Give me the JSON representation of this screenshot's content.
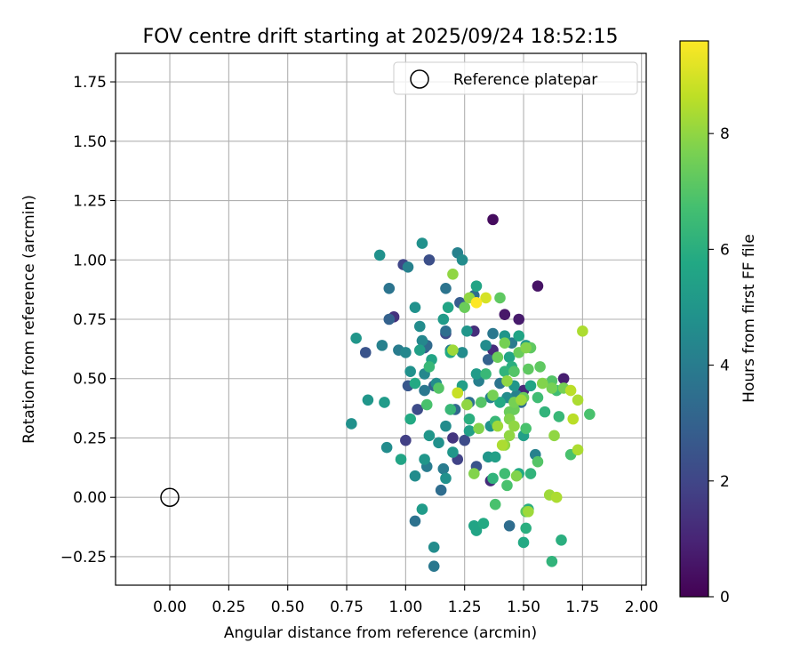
{
  "chart_data": {
    "type": "scatter",
    "title": "FOV centre drift starting at 2025/09/24 18:52:15",
    "xlabel": "Angular distance from reference (arcmin)",
    "ylabel": "Rotation from reference (arcmin)",
    "xlim": [
      -0.23,
      2.02
    ],
    "ylim": [
      -0.37,
      1.87
    ],
    "x_ticks": [
      0.0,
      0.25,
      0.5,
      0.75,
      1.0,
      1.25,
      1.5,
      1.75,
      2.0
    ],
    "x_tick_labels": [
      "0.00",
      "0.25",
      "0.50",
      "0.75",
      "1.00",
      "1.25",
      "1.50",
      "1.75",
      "2.00"
    ],
    "y_ticks": [
      -0.25,
      0.0,
      0.25,
      0.5,
      0.75,
      1.0,
      1.25,
      1.5,
      1.75
    ],
    "y_tick_labels": [
      "−0.25",
      "0.00",
      "0.25",
      "0.50",
      "0.75",
      "1.00",
      "1.25",
      "1.50",
      "1.75"
    ],
    "grid": true,
    "legend": {
      "position": "top-right",
      "label": "Reference platepar"
    },
    "reference_point": {
      "x": 0.0,
      "y": 0.0
    },
    "colorbar": {
      "label": "Hours from first FF file",
      "range": [
        0,
        9.6
      ],
      "ticks": [
        0,
        2,
        4,
        6,
        8
      ],
      "tick_labels": [
        "0",
        "2",
        "4",
        "6",
        "8"
      ],
      "colormap": "viridis"
    },
    "points": [
      [
        1.37,
        1.17,
        0.3
      ],
      [
        1.56,
        0.89,
        0.5
      ],
      [
        1.42,
        0.77,
        0.6
      ],
      [
        1.48,
        0.75,
        0.7
      ],
      [
        1.67,
        0.5,
        0.8
      ],
      [
        0.95,
        0.76,
        1.4
      ],
      [
        0.99,
        0.98,
        2.0
      ],
      [
        1.1,
        1.0,
        2.3
      ],
      [
        1.36,
        0.07,
        1.2
      ],
      [
        1.0,
        0.24,
        1.8
      ],
      [
        1.37,
        0.62,
        1.2
      ],
      [
        1.2,
        0.25,
        1.5
      ],
      [
        1.29,
        0.7,
        1.3
      ],
      [
        1.22,
        0.16,
        1.9
      ],
      [
        0.83,
        0.61,
        2.5
      ],
      [
        1.17,
        0.69,
        2.2
      ],
      [
        1.05,
        0.37,
        2.2
      ],
      [
        1.5,
        0.45,
        1.1
      ],
      [
        1.01,
        0.47,
        2.6
      ],
      [
        1.25,
        0.24,
        2.2
      ],
      [
        1.08,
        0.63,
        2.7
      ],
      [
        1.3,
        0.13,
        2.5
      ],
      [
        1.23,
        0.82,
        2.8
      ],
      [
        1.12,
        0.47,
        3.0
      ],
      [
        0.93,
        0.75,
        3.0
      ],
      [
        1.09,
        0.64,
        3.3
      ],
      [
        1.15,
        0.03,
        3.4
      ],
      [
        1.21,
        0.37,
        3.2
      ],
      [
        1.35,
        0.58,
        3.0
      ],
      [
        1.49,
        0.4,
        3.4
      ],
      [
        0.93,
        0.88,
        3.7
      ],
      [
        1.17,
        0.88,
        3.7
      ],
      [
        1.37,
        0.69,
        3.8
      ],
      [
        1.12,
        -0.29,
        3.8
      ],
      [
        1.04,
        -0.1,
        3.6
      ],
      [
        1.44,
        -0.12,
        3.4
      ],
      [
        1.27,
        0.4,
        3.5
      ],
      [
        1.17,
        0.7,
        3.5
      ],
      [
        1.4,
        0.48,
        3.7
      ],
      [
        1.08,
        0.45,
        3.8
      ],
      [
        1.29,
        0.85,
        3.4
      ],
      [
        1.09,
        0.13,
        4.0
      ],
      [
        1.16,
        0.12,
        4.0
      ],
      [
        1.22,
        1.03,
        4.2
      ],
      [
        0.9,
        0.64,
        4.2
      ],
      [
        1.01,
        0.97,
        4.2
      ],
      [
        0.97,
        0.62,
        4.0
      ],
      [
        1.19,
        0.62,
        4.1
      ],
      [
        1.47,
        0.43,
        4.2
      ],
      [
        1.45,
        0.65,
        4.0
      ],
      [
        1.36,
        0.42,
        4.2
      ],
      [
        1.55,
        0.18,
        4.2
      ],
      [
        1.31,
        0.49,
        4.1
      ],
      [
        1.0,
        0.61,
        4.4
      ],
      [
        1.07,
        0.66,
        4.4
      ],
      [
        1.08,
        0.52,
        4.4
      ],
      [
        1.13,
        0.48,
        4.6
      ],
      [
        1.12,
        -0.21,
        4.6
      ],
      [
        0.92,
        0.21,
        4.6
      ],
      [
        1.24,
        1.0,
        4.6
      ],
      [
        1.06,
        0.72,
        4.6
      ],
      [
        1.17,
        0.3,
        4.6
      ],
      [
        1.24,
        0.61,
        4.6
      ],
      [
        1.04,
        0.09,
        4.6
      ],
      [
        1.34,
        0.64,
        4.6
      ],
      [
        1.43,
        0.42,
        4.6
      ],
      [
        1.02,
        0.53,
        4.8
      ],
      [
        1.04,
        0.8,
        4.8
      ],
      [
        1.14,
        0.23,
        4.8
      ],
      [
        1.36,
        0.3,
        4.8
      ],
      [
        1.17,
        0.08,
        4.8
      ],
      [
        0.77,
        0.31,
        4.8
      ],
      [
        0.89,
        1.02,
        4.8
      ],
      [
        1.07,
        1.07,
        4.8
      ],
      [
        0.79,
        0.67,
        5.0
      ],
      [
        1.08,
        0.16,
        5.0
      ],
      [
        0.84,
        0.41,
        5.0
      ],
      [
        1.26,
        0.7,
        5.0
      ],
      [
        1.1,
        0.26,
        5.0
      ],
      [
        1.2,
        0.19,
        5.0
      ],
      [
        1.35,
        0.17,
        5.0
      ],
      [
        1.42,
        0.68,
        5.0
      ],
      [
        1.46,
        0.47,
        5.0
      ],
      [
        1.3,
        0.52,
        5.2
      ],
      [
        1.51,
        0.64,
        5.2
      ],
      [
        0.91,
        0.4,
        5.2
      ],
      [
        1.07,
        -0.05,
        5.2
      ],
      [
        1.16,
        0.75,
        5.2
      ],
      [
        1.27,
        0.28,
        5.4
      ],
      [
        1.38,
        0.17,
        5.4
      ],
      [
        1.5,
        0.26,
        5.4
      ],
      [
        1.24,
        0.47,
        5.4
      ],
      [
        1.06,
        0.62,
        5.4
      ],
      [
        1.29,
        -0.12,
        5.6
      ],
      [
        1.48,
        0.68,
        5.6
      ],
      [
        1.3,
        0.89,
        5.6
      ],
      [
        0.98,
        0.16,
        5.6
      ],
      [
        1.3,
        -0.14,
        5.6
      ],
      [
        1.53,
        0.47,
        5.6
      ],
      [
        1.44,
        0.59,
        5.6
      ],
      [
        1.11,
        0.58,
        5.6
      ],
      [
        1.18,
        0.8,
        5.6
      ],
      [
        1.48,
        0.1,
        5.8
      ],
      [
        1.33,
        -0.11,
        5.8
      ],
      [
        1.5,
        -0.19,
        5.8
      ],
      [
        1.4,
        0.4,
        5.8
      ],
      [
        1.19,
        0.61,
        5.8
      ],
      [
        1.02,
        0.33,
        5.8
      ],
      [
        1.04,
        0.48,
        5.8
      ],
      [
        1.51,
        -0.13,
        6.0
      ],
      [
        1.66,
        -0.18,
        6.0
      ],
      [
        1.45,
        0.55,
        6.0
      ],
      [
        1.27,
        0.33,
        6.0
      ],
      [
        1.52,
        -0.05,
        6.0
      ],
      [
        1.53,
        0.1,
        6.2
      ],
      [
        1.37,
        0.08,
        6.2
      ],
      [
        1.42,
        0.53,
        6.2
      ],
      [
        1.62,
        -0.27,
        6.2
      ],
      [
        1.59,
        0.36,
        6.2
      ],
      [
        1.65,
        0.34,
        6.4
      ],
      [
        1.34,
        0.52,
        6.4
      ],
      [
        1.19,
        0.37,
        6.4
      ],
      [
        1.1,
        0.55,
        6.4
      ],
      [
        1.38,
        0.32,
        6.4
      ],
      [
        1.64,
        0.45,
        6.6
      ],
      [
        1.42,
        0.1,
        6.6
      ],
      [
        1.56,
        0.42,
        6.6
      ],
      [
        1.43,
        0.05,
        6.8
      ],
      [
        1.51,
        0.29,
        6.8
      ],
      [
        1.38,
        -0.03,
        6.8
      ],
      [
        1.09,
        0.39,
        6.8
      ],
      [
        1.78,
        0.35,
        6.8
      ],
      [
        1.7,
        0.18,
        6.8
      ],
      [
        1.46,
        0.53,
        7.0
      ],
      [
        1.56,
        0.15,
        7.0
      ],
      [
        1.62,
        0.49,
        7.0
      ],
      [
        1.32,
        0.4,
        7.0
      ],
      [
        1.14,
        0.46,
        7.0
      ],
      [
        1.51,
        -0.06,
        7.2
      ],
      [
        1.52,
        0.54,
        7.2
      ],
      [
        1.57,
        0.55,
        7.2
      ],
      [
        1.4,
        0.84,
        7.2
      ],
      [
        1.53,
        0.63,
        7.2
      ],
      [
        1.44,
        0.36,
        7.4
      ],
      [
        1.48,
        0.61,
        7.4
      ],
      [
        1.25,
        0.8,
        7.4
      ],
      [
        1.46,
        0.37,
        7.4
      ],
      [
        1.39,
        0.59,
        7.4
      ],
      [
        1.5,
        0.42,
        7.4
      ],
      [
        1.46,
        0.4,
        7.6
      ],
      [
        1.62,
        0.46,
        7.6
      ],
      [
        1.42,
        0.65,
        7.6
      ],
      [
        1.67,
        0.46,
        7.6
      ],
      [
        1.37,
        0.43,
        7.6
      ],
      [
        1.44,
        0.33,
        7.8
      ],
      [
        1.29,
        0.1,
        7.8
      ],
      [
        1.47,
        0.09,
        7.8
      ],
      [
        1.51,
        0.63,
        7.8
      ],
      [
        1.58,
        0.48,
        7.8
      ],
      [
        1.31,
        0.29,
        7.8
      ],
      [
        1.42,
        0.22,
        8.0
      ],
      [
        1.46,
        0.3,
        8.0
      ],
      [
        1.27,
        0.84,
        8.0
      ],
      [
        1.2,
        0.94,
        8.0
      ],
      [
        1.44,
        0.26,
        8.0
      ],
      [
        1.63,
        0.26,
        8.0
      ],
      [
        1.26,
        0.39,
        8.0
      ],
      [
        1.43,
        0.49,
        8.0
      ],
      [
        1.39,
        0.3,
        8.2
      ],
      [
        1.49,
        0.41,
        8.2
      ],
      [
        1.61,
        0.01,
        8.2
      ],
      [
        1.2,
        0.62,
        8.2
      ],
      [
        1.22,
        0.44,
        8.2
      ],
      [
        1.52,
        -0.06,
        8.2
      ],
      [
        1.64,
        -0.0,
        8.4
      ],
      [
        1.75,
        0.7,
        8.4
      ],
      [
        1.41,
        0.22,
        8.4
      ],
      [
        1.73,
        0.2,
        8.4
      ],
      [
        1.73,
        0.41,
        8.4
      ],
      [
        1.7,
        0.45,
        8.6
      ],
      [
        1.71,
        0.33,
        8.6
      ],
      [
        1.22,
        0.44,
        8.8
      ],
      [
        1.34,
        0.84,
        9.0
      ],
      [
        1.3,
        0.82,
        9.6
      ]
    ]
  }
}
